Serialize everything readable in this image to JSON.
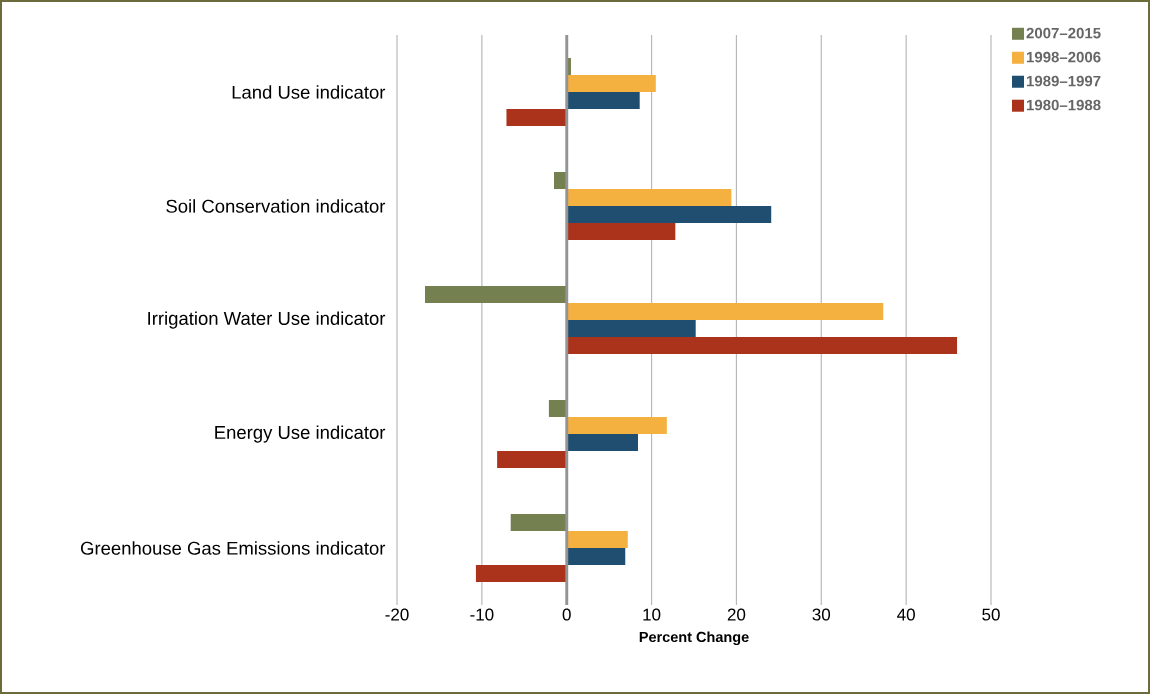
{
  "chart_data": {
    "type": "bar",
    "orientation": "horizontal",
    "xlabel": "Percent Change",
    "categories": [
      "Land Use indicator",
      "Soil Conservation indicator",
      "Irrigation Water Use indicator",
      "Energy Use indicator",
      "Greenhouse Gas Emissions indicator"
    ],
    "series": [
      {
        "name": "2007–2015",
        "color": "#748050",
        "values": [
          0.5,
          -1.5,
          -16.7,
          -2.1,
          -6.6
        ]
      },
      {
        "name": "1998–2006",
        "color": "#f4b13f",
        "values": [
          10.5,
          19.4,
          37.3,
          11.8,
          7.2
        ]
      },
      {
        "name": "1989–1997",
        "color": "#1f4e70",
        "values": [
          8.6,
          24.1,
          15.2,
          8.4,
          6.9
        ]
      },
      {
        "name": "1980–1988",
        "color": "#ab321b",
        "values": [
          -7.1,
          12.8,
          46.0,
          -8.2,
          -10.7
        ]
      }
    ],
    "xlim": [
      -20,
      50
    ],
    "xticks": [
      -20,
      -10,
      0,
      10,
      20,
      30,
      40,
      50
    ],
    "grid": "x",
    "legend": "top right"
  }
}
